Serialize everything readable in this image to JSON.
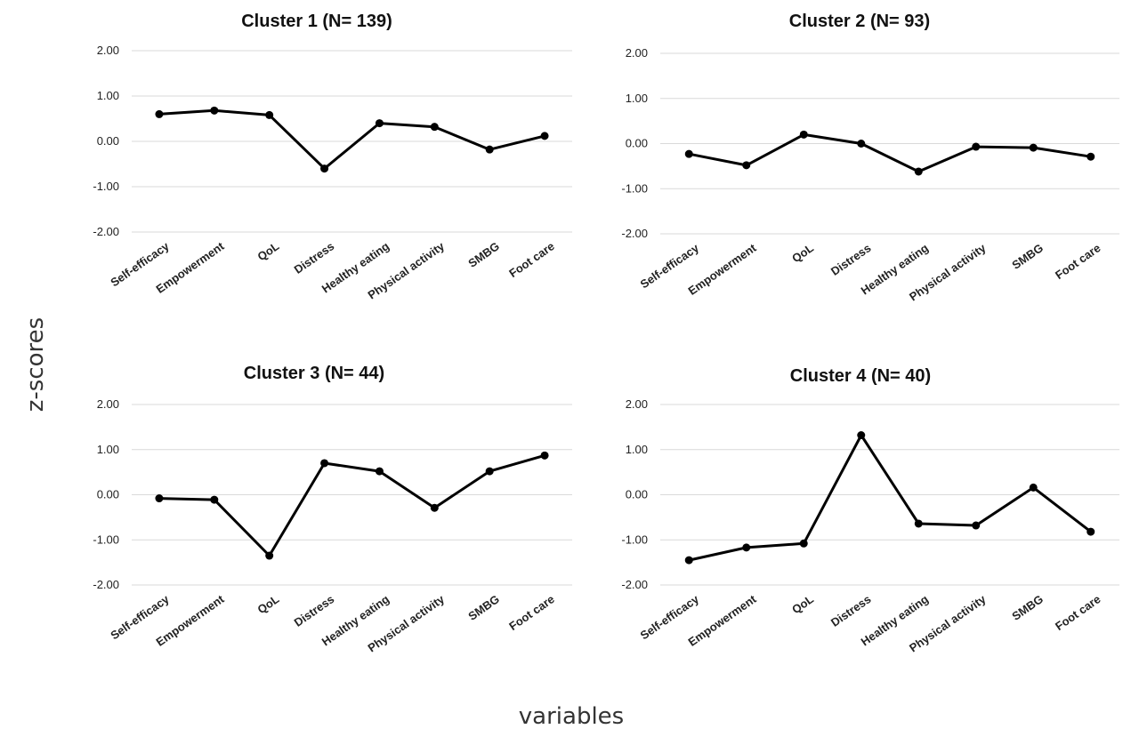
{
  "figure": {
    "y_axis_title": "z-scores",
    "x_axis_title": "variables"
  },
  "chart_data": [
    {
      "type": "line",
      "title": "Cluster 1 (N= 139)",
      "categories": [
        "Self-efficacy",
        "Empowerment",
        "QoL",
        "Distress",
        "Healthy eating",
        "Physical activity",
        "SMBG",
        "Foot care"
      ],
      "values": [
        0.6,
        0.68,
        0.58,
        -0.6,
        0.4,
        0.32,
        -0.18,
        0.12
      ],
      "ylim": [
        -2,
        2
      ],
      "yticks": [
        "2.00",
        "1.00",
        "0.00",
        "-1.00",
        "-2.00"
      ],
      "grid": true,
      "color": "#000000"
    },
    {
      "type": "line",
      "title": "Cluster 2 (N= 93)",
      "categories": [
        "Self-efficacy",
        "Empowerment",
        "QoL",
        "Distress",
        "Healthy eating",
        "Physical activity",
        "SMBG",
        "Foot care"
      ],
      "values": [
        -0.23,
        -0.48,
        0.2,
        0.0,
        -0.62,
        -0.07,
        -0.09,
        -0.29
      ],
      "ylim": [
        -2,
        2
      ],
      "yticks": [
        "2.00",
        "1.00",
        "0.00",
        "-1.00",
        "-2.00"
      ],
      "grid": true,
      "color": "#000000"
    },
    {
      "type": "line",
      "title": "Cluster 3 (N= 44)",
      "categories": [
        "Self-efficacy",
        "Empowerment",
        "QoL",
        "Distress",
        "Healthy eating",
        "Physical activity",
        "SMBG",
        "Foot care"
      ],
      "values": [
        -0.08,
        -0.11,
        -1.35,
        0.7,
        0.52,
        -0.29,
        0.52,
        0.87
      ],
      "ylim": [
        -2,
        2
      ],
      "yticks": [
        "2.00",
        "1.00",
        "0.00",
        "-1.00",
        "-2.00"
      ],
      "grid": true,
      "color": "#000000"
    },
    {
      "type": "line",
      "title": "Cluster 4 (N= 40)",
      "categories": [
        "Self-efficacy",
        "Empowerment",
        "QoL",
        "Distress",
        "Healthy eating",
        "Physical activity",
        "SMBG",
        "Foot care"
      ],
      "values": [
        -1.45,
        -1.17,
        -1.08,
        1.32,
        -0.64,
        -0.68,
        0.16,
        -0.82
      ],
      "ylim": [
        -2,
        2
      ],
      "yticks": [
        "2.00",
        "1.00",
        "0.00",
        "-1.00",
        "-2.00"
      ],
      "grid": true,
      "color": "#000000"
    }
  ]
}
